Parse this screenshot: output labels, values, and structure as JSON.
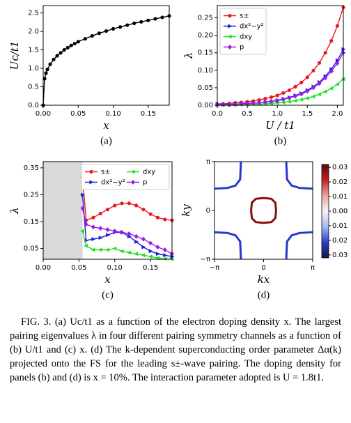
{
  "chart_data": [
    {
      "type": "line",
      "panel": "(a)",
      "xlabel": "x",
      "ylabel": "Uc/t1",
      "color": "#000000",
      "x": [
        0,
        0.002,
        0.004,
        0.006,
        0.01,
        0.015,
        0.02,
        0.025,
        0.03,
        0.035,
        0.04,
        0.045,
        0.05,
        0.06,
        0.07,
        0.08,
        0.09,
        0.1,
        0.11,
        0.12,
        0.13,
        0.14,
        0.15,
        0.16,
        0.17,
        0.18
      ],
      "values": [
        0,
        0.72,
        0.87,
        0.97,
        1.11,
        1.24,
        1.34,
        1.42,
        1.5,
        1.56,
        1.62,
        1.67,
        1.72,
        1.8,
        1.88,
        1.95,
        2.01,
        2.07,
        2.12,
        2.17,
        2.22,
        2.26,
        2.3,
        2.34,
        2.38,
        2.42
      ],
      "xlim": [
        0,
        0.18
      ],
      "ylim": [
        0,
        2.7
      ],
      "xticks": [
        {
          "value": 0,
          "label": "0.00"
        },
        0.05,
        {
          "value": 0.1,
          "label": "0.10"
        },
        0.15
      ],
      "yticks": [
        {
          "value": 0,
          "label": "0.0"
        },
        0.5,
        {
          "value": 1,
          "label": "1.0"
        },
        1.5,
        {
          "value": 2,
          "label": "2.0"
        },
        2.5
      ]
    },
    {
      "type": "line",
      "panel": "(b)",
      "xlabel": "U / t1",
      "ylabel": "λ",
      "legend": "upper left",
      "x": [
        0,
        0.1,
        0.2,
        0.3,
        0.4,
        0.5,
        0.6,
        0.7,
        0.8,
        0.9,
        1.0,
        1.1,
        1.2,
        1.3,
        1.4,
        1.5,
        1.6,
        1.7,
        1.8,
        1.9,
        2.0,
        2.1
      ],
      "series": [
        {
          "name": "s±",
          "color": "#e8191f",
          "values": [
            0.004,
            0.004,
            0.005,
            0.007,
            0.008,
            0.01,
            0.012,
            0.015,
            0.019,
            0.023,
            0.028,
            0.035,
            0.043,
            0.053,
            0.065,
            0.08,
            0.099,
            0.121,
            0.15,
            0.184,
            0.227,
            0.28
          ]
        },
        {
          "name": "dx²−y²",
          "color": "#1c1ce0",
          "values": [
            0.002,
            0.002,
            0.002,
            0.003,
            0.004,
            0.005,
            0.006,
            0.007,
            0.009,
            0.011,
            0.014,
            0.018,
            0.022,
            0.028,
            0.034,
            0.043,
            0.053,
            0.066,
            0.083,
            0.103,
            0.128,
            0.16
          ]
        },
        {
          "name": "dxy",
          "color": "#22e022",
          "values": [
            0.001,
            0.001,
            0.001,
            0.001,
            0.002,
            0.002,
            0.003,
            0.003,
            0.004,
            0.005,
            0.007,
            0.008,
            0.01,
            0.013,
            0.016,
            0.02,
            0.025,
            0.031,
            0.039,
            0.048,
            0.06,
            0.075
          ]
        },
        {
          "name": "p",
          "color": "#9a1ce0",
          "values": [
            0.001,
            0.002,
            0.002,
            0.003,
            0.004,
            0.004,
            0.006,
            0.007,
            0.009,
            0.011,
            0.013,
            0.017,
            0.021,
            0.026,
            0.032,
            0.04,
            0.05,
            0.062,
            0.078,
            0.097,
            0.12,
            0.15
          ]
        }
      ],
      "xlim": [
        0,
        2.1
      ],
      "ylim": [
        0,
        0.285
      ],
      "xticks": [
        {
          "value": 0,
          "label": "0.0"
        },
        0.5,
        {
          "value": 1,
          "label": "1.0"
        },
        1.5,
        {
          "value": 2,
          "label": "2.0"
        }
      ],
      "yticks": [
        {
          "value": 0,
          "label": "0.00"
        },
        0.05,
        {
          "value": 0.1,
          "label": "0.10"
        },
        0.15,
        {
          "value": 0.2,
          "label": "0.20"
        },
        0.25
      ]
    },
    {
      "type": "line",
      "panel": "(c)",
      "xlabel": "x",
      "ylabel": "λ",
      "legend": "upper right",
      "legend_columns": 2,
      "xspan": [
        0,
        0.055
      ],
      "xspan_color": "#d9d9d9",
      "x": [
        0.055,
        0.06,
        0.07,
        0.08,
        0.09,
        0.1,
        0.11,
        0.12,
        0.13,
        0.14,
        0.15,
        0.16,
        0.17,
        0.18
      ],
      "series": [
        {
          "name": "s±",
          "color": "#e8191f",
          "values": [
            0.315,
            0.155,
            0.165,
            0.18,
            0.195,
            0.21,
            0.218,
            0.218,
            0.21,
            0.195,
            0.178,
            0.165,
            0.158,
            0.155
          ]
        },
        {
          "name": "dx²−y²",
          "color": "#1c1ce0",
          "values": [
            0.25,
            0.08,
            0.085,
            0.09,
            0.1,
            0.11,
            0.11,
            0.095,
            0.075,
            0.055,
            0.04,
            0.03,
            0.025,
            0.02
          ]
        },
        {
          "name": "dxy",
          "color": "#22e022",
          "values": [
            0.115,
            0.06,
            0.045,
            0.045,
            0.045,
            0.05,
            0.04,
            0.035,
            0.03,
            0.025,
            0.02,
            0.015,
            0.012,
            0.01
          ]
        },
        {
          "name": "p",
          "color": "#9a1ce0",
          "values": [
            0.2,
            0.14,
            0.13,
            0.125,
            0.12,
            0.115,
            0.11,
            0.105,
            0.095,
            0.085,
            0.07,
            0.055,
            0.045,
            0.03
          ]
        }
      ],
      "xlim": [
        0,
        0.18
      ],
      "ylim": [
        0.01,
        0.373
      ],
      "xticks": [
        {
          "value": 0,
          "label": "0.00"
        },
        0.05,
        {
          "value": 0.1,
          "label": "0.10"
        },
        0.15
      ],
      "yticks": [
        0.05,
        0.15,
        0.25,
        0.35
      ]
    },
    {
      "type": "contour",
      "panel": "(d)",
      "xlabel": "kx",
      "ylabel": "ky",
      "curves": [
        {
          "color": "#8b0a0a",
          "x": [
            0.8,
            0.75,
            0.5,
            0,
            -0.5,
            -0.75,
            -0.8,
            -0.75,
            -0.5,
            0,
            0.5,
            0.75,
            0.8
          ],
          "y": [
            0,
            0.5,
            0.75,
            0.8,
            0.75,
            0.5,
            0,
            -0.5,
            -0.75,
            -0.8,
            -0.75,
            -0.5,
            0
          ]
        },
        {
          "color": "#2438d0",
          "x": [
            -1.45,
            -1.5,
            -1.8,
            -2.3,
            -3.1416
          ],
          "y": [
            3.1416,
            2.0,
            1.6,
            1.45,
            1.4
          ]
        },
        {
          "color": "#2438d0",
          "x": [
            1.45,
            1.5,
            1.8,
            2.3,
            3.1416
          ],
          "y": [
            3.1416,
            2.0,
            1.6,
            1.45,
            1.4
          ]
        },
        {
          "color": "#2438d0",
          "x": [
            -1.45,
            -1.5,
            -1.8,
            -2.3,
            -3.1416
          ],
          "y": [
            -3.1416,
            -2.0,
            -1.6,
            -1.45,
            -1.4
          ]
        },
        {
          "color": "#2438d0",
          "x": [
            1.45,
            1.5,
            1.8,
            2.3,
            3.1416
          ],
          "y": [
            -3.1416,
            -2.0,
            -1.6,
            -1.45,
            -1.4
          ]
        }
      ],
      "xlim": [
        -3.1416,
        3.1416
      ],
      "ylim": [
        -3.1416,
        3.1416
      ],
      "xticks": [
        {
          "value": -3.1416,
          "label": "−π"
        },
        0,
        {
          "value": 3.1416,
          "label": "π"
        }
      ],
      "yticks": [
        {
          "value": -3.1416,
          "label": "−π"
        },
        0,
        {
          "value": 3.1416,
          "label": "π"
        }
      ],
      "colorbar": {
        "lim": [
          -0.032,
          0.032
        ],
        "ticks": [
          0.03,
          0.02,
          0.01,
          {
            "value": 0,
            "label": "0.00"
          },
          {
            "value": -0.01,
            "label": "0.01"
          },
          {
            "value": -0.02,
            "label": "0.02"
          },
          {
            "value": -0.03,
            "label": "0.03"
          }
        ],
        "colors": [
          "#15154a",
          "#2c3fc8",
          "#a9b8f0",
          "#f7f3f3",
          "#eaa3a3",
          "#c62020",
          "#5a0a0a"
        ]
      }
    }
  ],
  "caption": "FIG. 3. (a) Uc/t1 as a function of the electron doping density x. The largest pairing eigenvalues λ in four different pairing symmetry channels as a function of (b) U/t1 and (c) x. (d) The k-dependent superconducting order parameter Δα(k) projected onto the FS for the leading s±-wave pairing. The doping density for panels (b) and (d) is x = 10%. The interaction parameter adopted is U = 1.8t1."
}
